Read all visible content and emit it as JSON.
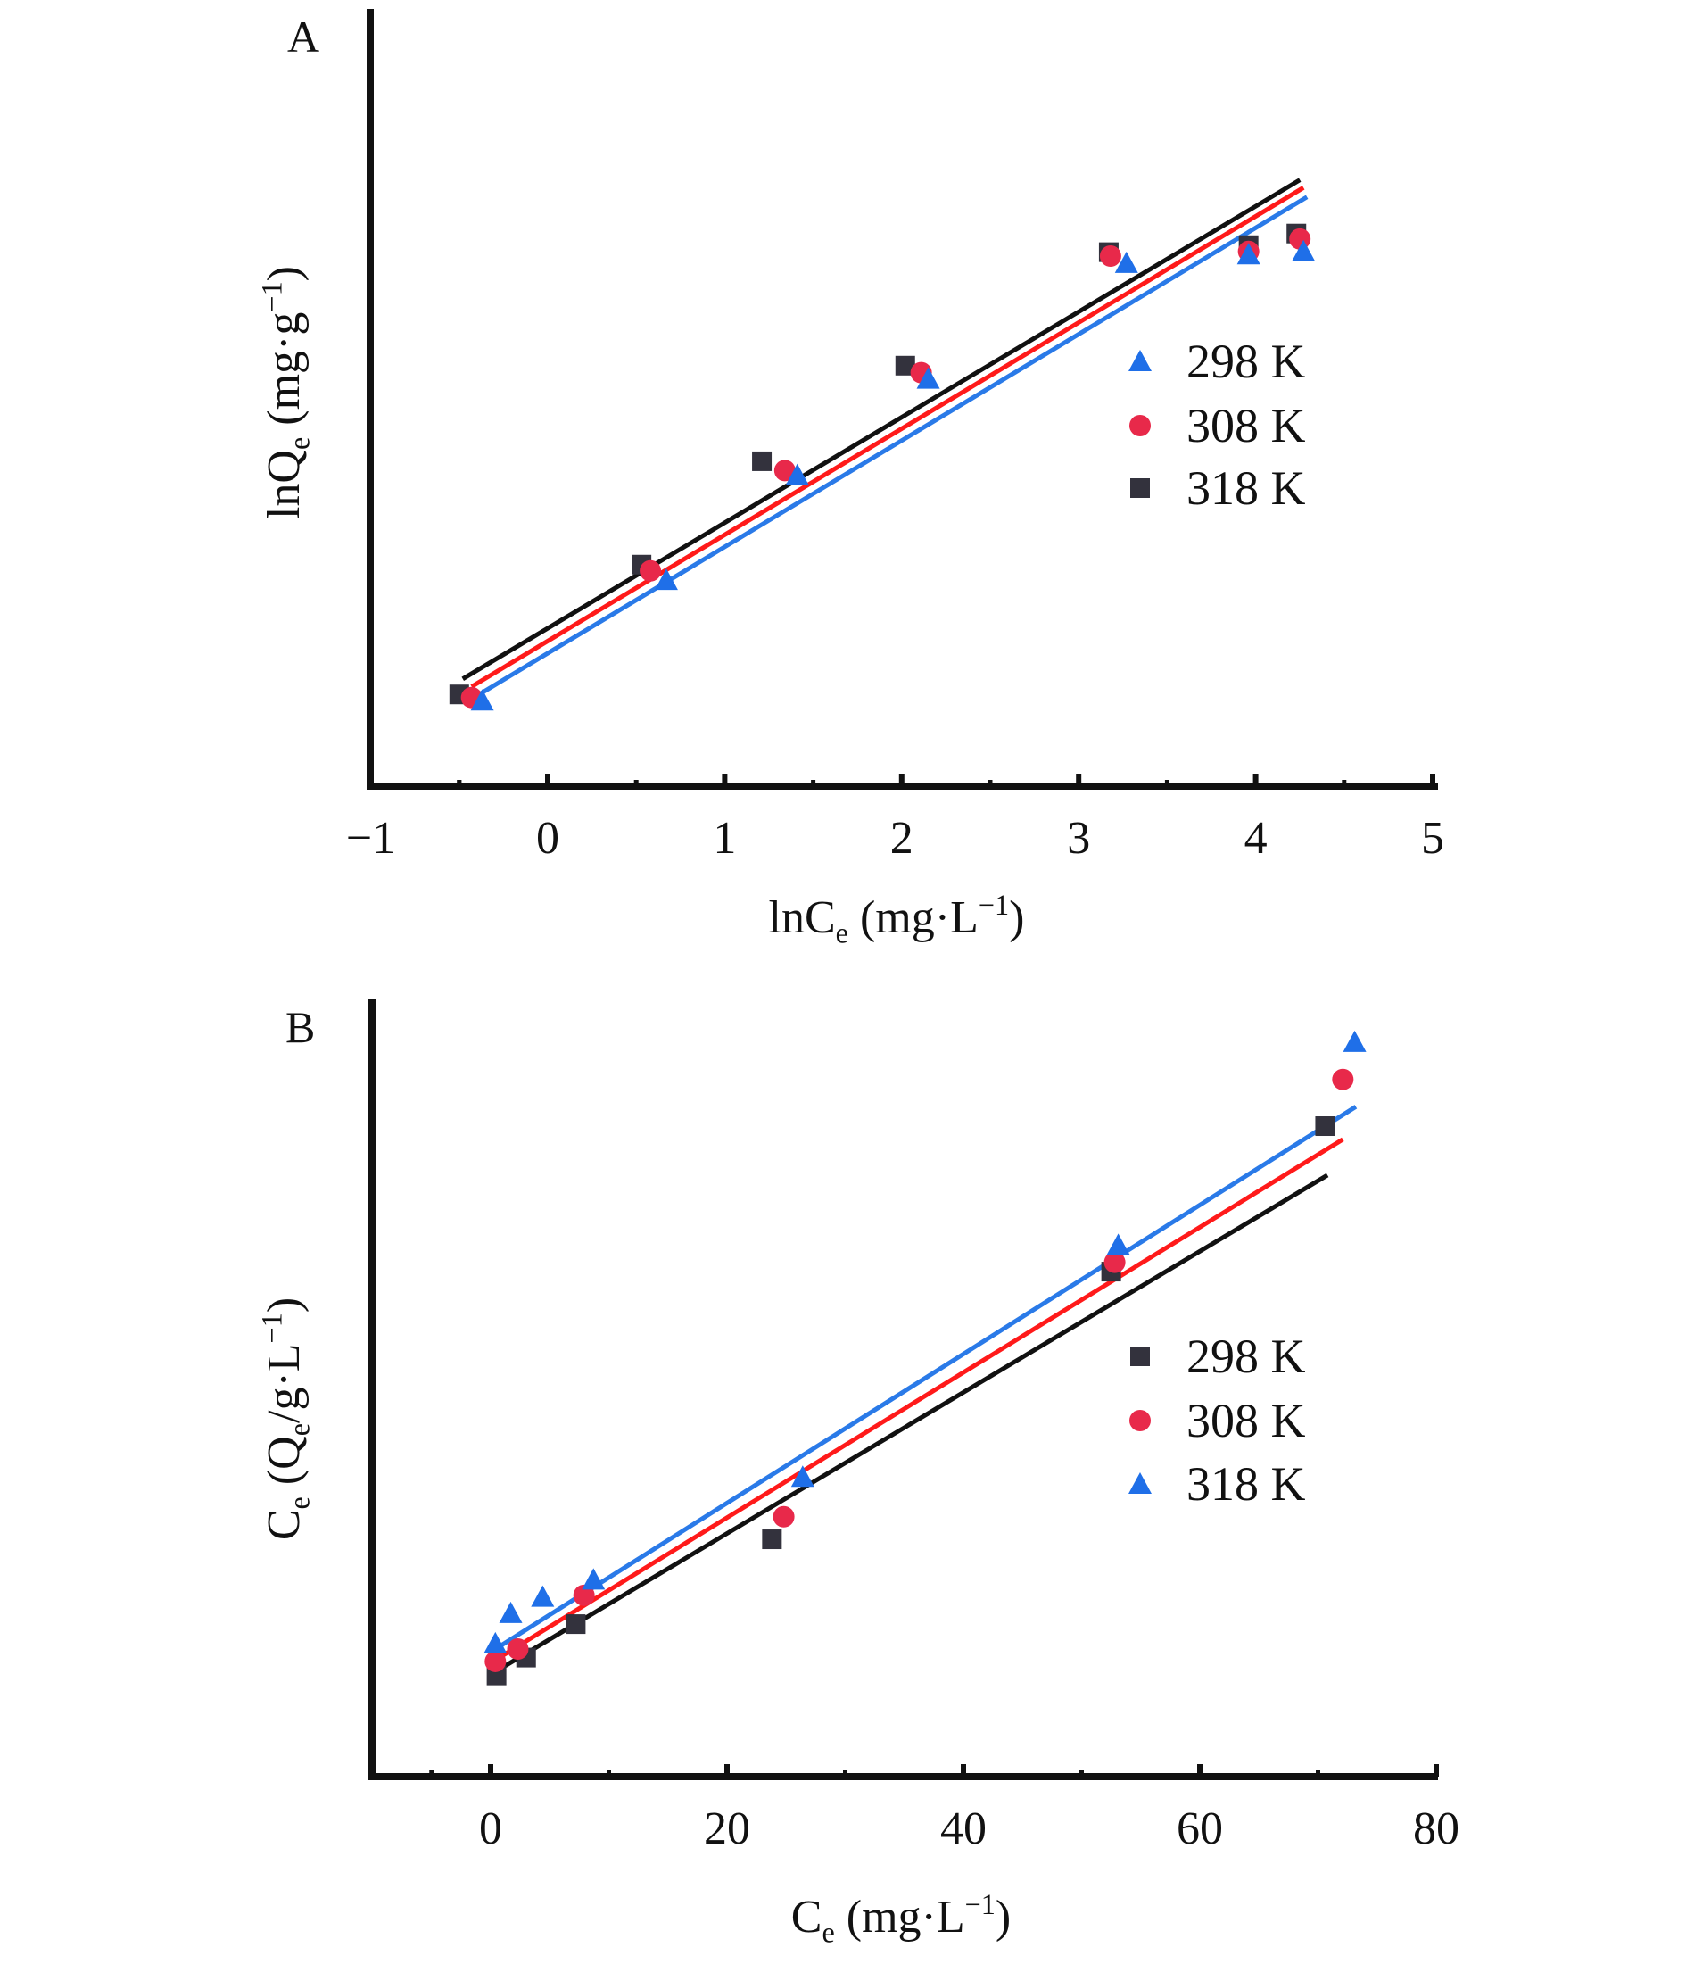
{
  "colors": {
    "blue": "#1f6fe8",
    "red": "#e8294a",
    "dark": "#33323d",
    "line_black": "#111111",
    "line_red": "#ff1a1a",
    "line_blue": "#2a7ae8"
  },
  "chart_data": [
    {
      "panel": "A",
      "type": "scatter",
      "title": "",
      "xlabel": "lnCe (mg·L⁻¹)",
      "xlabel_parts": {
        "main": "lnC",
        "sub": "e",
        "unit": " (mg·L",
        "sup": "−1",
        "close": ")"
      },
      "ylabel": "lnQe (mg·g⁻¹)",
      "ylabel_parts": {
        "main": "lnQ",
        "sub": "e",
        "unit": " (mg·g",
        "sup": "−1",
        "close": ")"
      },
      "xlim": [
        -1,
        5
      ],
      "ylim_relative": [
        0,
        100
      ],
      "y_note": "no y tick labels; y values are relative (0 = x-axis, 100 = top of y-axis)",
      "xticks": [
        -1,
        0,
        1,
        2,
        3,
        4,
        5
      ],
      "xtick_labels": [
        "−1",
        "0",
        "1",
        "2",
        "3",
        "4",
        "5"
      ],
      "legend": [
        {
          "label": "298 K",
          "marker": "triangle",
          "color": "#1f6fe8"
        },
        {
          "label": "308 K",
          "marker": "circle",
          "color": "#e8294a"
        },
        {
          "label": "318 K",
          "marker": "square",
          "color": "#33323d"
        }
      ],
      "legend_position": "right-middle",
      "series": [
        {
          "name": "298 K",
          "marker": "triangle",
          "color": "#1f6fe8",
          "x": [
            -0.37,
            0.67,
            1.41,
            2.15,
            3.27,
            3.96,
            4.27
          ],
          "y": [
            11.0,
            26.5,
            40.0,
            52.4,
            67.3,
            68.4,
            68.8
          ],
          "fit": {
            "x": [
              -0.38,
              4.29
            ],
            "y": [
              11.9,
              75.8
            ],
            "color": "#2a7ae8"
          }
        },
        {
          "name": "308 K",
          "marker": "circle",
          "color": "#e8294a",
          "x": [
            -0.43,
            0.58,
            1.34,
            2.11,
            3.18,
            3.96,
            4.25
          ],
          "y": [
            11.4,
            27.7,
            40.6,
            53.2,
            68.2,
            68.8,
            70.4
          ],
          "fit": {
            "x": [
              -0.43,
              4.27
            ],
            "y": [
              12.8,
              77.0
            ],
            "color": "#ff1a1a"
          }
        },
        {
          "name": "318 K",
          "marker": "square",
          "color": "#33323d",
          "x": [
            -0.5,
            0.53,
            1.21,
            2.02,
            3.17,
            3.96,
            4.23
          ],
          "y": [
            11.8,
            28.5,
            41.8,
            54.1,
            68.7,
            69.6,
            71.1
          ],
          "fit": {
            "x": [
              -0.48,
              4.25
            ],
            "y": [
              13.8,
              78.0
            ],
            "color": "#111111"
          }
        }
      ]
    },
    {
      "panel": "B",
      "type": "scatter",
      "title": "",
      "xlabel": "Ce (mg·L⁻¹)",
      "xlabel_parts": {
        "main": "C",
        "sub": "e",
        "unit": " (mg·L",
        "sup": "−1",
        "close": ")"
      },
      "ylabel": "Ce (Qe/g·L⁻¹)",
      "ylabel_parts": {
        "main": "C",
        "sub": "e",
        "unit": " (Q",
        "sub2": "e",
        "unit2": "/g·L",
        "sup": "−1",
        "close": ")"
      },
      "xlim": [
        -10,
        80
      ],
      "ylim_relative": [
        0,
        100
      ],
      "y_note": "no y tick labels; y values are relative (0 = x-axis, 100 = top of y-axis)",
      "xticks": [
        0,
        20,
        40,
        60,
        80
      ],
      "xtick_labels": [
        "0",
        "20",
        "40",
        "60",
        "80"
      ],
      "legend": [
        {
          "label": "298 K",
          "marker": "square",
          "color": "#33323d"
        },
        {
          "label": "308 K",
          "marker": "circle",
          "color": "#e8294a"
        },
        {
          "label": "318 K",
          "marker": "triangle",
          "color": "#1f6fe8"
        }
      ],
      "legend_position": "right-middle",
      "series": [
        {
          "name": "298 K",
          "marker": "square",
          "color": "#33323d",
          "x": [
            0.5,
            3.0,
            7.2,
            23.8,
            52.5,
            70.6
          ],
          "y": [
            13.0,
            15.3,
            19.6,
            30.5,
            64.9,
            83.6
          ],
          "fit": {
            "x": [
              0.2,
              70.8
            ],
            "y": [
              13.3,
              77.3
            ],
            "color": "#111111"
          }
        },
        {
          "name": "308 K",
          "marker": "circle",
          "color": "#e8294a",
          "x": [
            0.4,
            2.3,
            7.9,
            24.8,
            52.8,
            72.1
          ],
          "y": [
            14.8,
            16.4,
            23.3,
            33.4,
            66.1,
            89.6
          ],
          "fit": {
            "x": [
              0.2,
              72.1
            ],
            "y": [
              14.8,
              81.9
            ],
            "color": "#ff1a1a"
          }
        },
        {
          "name": "318 K",
          "marker": "triangle",
          "color": "#1f6fe8",
          "x": [
            0.4,
            1.7,
            4.4,
            8.7,
            26.4,
            53.1,
            73.1
          ],
          "y": [
            17.1,
            21.0,
            23.1,
            25.3,
            38.5,
            68.3,
            94.4
          ],
          "fit": {
            "x": [
              0.2,
              73.2
            ],
            "y": [
              16.2,
              86.1
            ],
            "color": "#2a7ae8"
          }
        }
      ]
    }
  ]
}
